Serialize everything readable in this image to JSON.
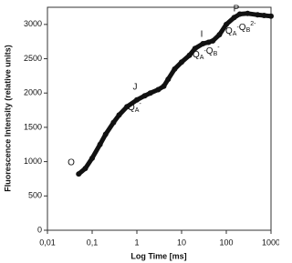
{
  "chart_data": {
    "type": "scatter",
    "xlabel": "Log Time [ms]",
    "ylabel": "Fluorescence Intensity (relative units)",
    "xscale": "log",
    "x": [
      0.05,
      0.07,
      0.1,
      0.15,
      0.2,
      0.3,
      0.4,
      0.6,
      1,
      1.5,
      2,
      3,
      4,
      5,
      7,
      10,
      15,
      20,
      30,
      40,
      50,
      70,
      100,
      150,
      200,
      300,
      500,
      700,
      1000
    ],
    "values": [
      820,
      900,
      1050,
      1250,
      1400,
      1570,
      1680,
      1800,
      1900,
      1960,
      2000,
      2050,
      2100,
      2200,
      2350,
      2450,
      2550,
      2650,
      2720,
      2740,
      2760,
      2850,
      3000,
      3100,
      3150,
      3160,
      3140,
      3130,
      3120
    ],
    "color": "#111111",
    "xlim": [
      0.01,
      1000
    ],
    "xticks": [
      {
        "value": 0.01,
        "label": "0,01"
      },
      {
        "value": 0.1,
        "label": "0,1"
      },
      1,
      10,
      100,
      1000
    ],
    "ylim": [
      0,
      3250
    ],
    "yticks": [
      0,
      500,
      1000,
      1500,
      2000,
      2500,
      3000
    ],
    "grid": false,
    "annotations": [
      "O",
      "J",
      [
        {
          "base": "Q",
          "sub": "A",
          "sup": "-"
        }
      ],
      "I",
      [
        {
          "base": "Q",
          "sub": "A",
          "sup": "-"
        },
        {
          "base": "Q",
          "sub": "B",
          "sup": "-"
        }
      ],
      "P",
      [
        {
          "base": "Q",
          "sub": "A",
          "sup": "-"
        },
        {
          "base": "Q",
          "sub": "B",
          "sup": "2-"
        }
      ]
    ]
  }
}
